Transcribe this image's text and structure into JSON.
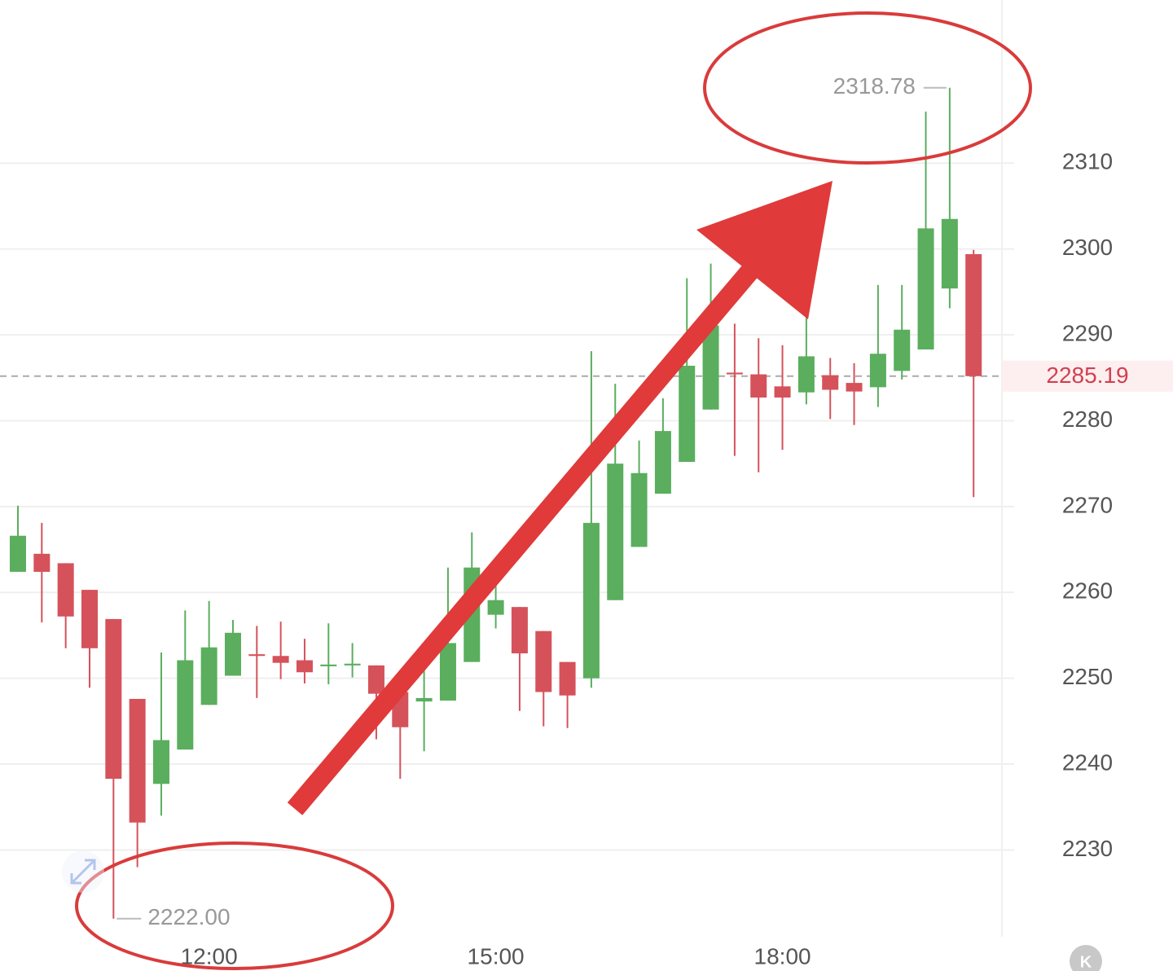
{
  "chart_data": {
    "type": "candlestick",
    "categories": [
      null,
      null,
      null,
      null,
      null,
      null,
      null,
      null,
      "12:00",
      null,
      null,
      null,
      null,
      null,
      null,
      null,
      null,
      null,
      null,
      null,
      "15:00",
      null,
      null,
      null,
      null,
      null,
      null,
      null,
      null,
      null,
      null,
      null,
      "18:00",
      null,
      null,
      null,
      null,
      null,
      null,
      null,
      null
    ],
    "open": [
      2262.4,
      2264.5,
      2263.4,
      2260.3,
      2256.9,
      2247.6,
      2237.7,
      2241.7,
      2246.9,
      2250.3,
      2252.8,
      2252.6,
      2252.1,
      2251.4,
      2251.5,
      2251.5,
      2248.4,
      2247.3,
      2247.4,
      2251.9,
      2257.4,
      2258.3,
      2255.5,
      2251.9,
      2250.0,
      2259.1,
      2265.3,
      2271.5,
      2275.2,
      2281.3,
      2285.6,
      2285.4,
      2284.0,
      2283.3,
      2285.3,
      2284.4,
      2283.9,
      2285.8,
      2288.3,
      2295.4,
      2299.4
    ],
    "high": [
      2270.1,
      2268.1,
      2263.4,
      2260.3,
      2256.9,
      2247.6,
      2253.0,
      2257.9,
      2259.0,
      2256.8,
      2256.1,
      2256.6,
      2254.6,
      2256.4,
      2254.1,
      2251.5,
      2248.4,
      2251.3,
      2262.9,
      2267.0,
      2262.7,
      2258.3,
      2255.5,
      2251.9,
      2288.1,
      2284.3,
      2277.7,
      2282.6,
      2296.6,
      2298.3,
      2291.3,
      2289.6,
      2288.8,
      2293.4,
      2287.3,
      2286.7,
      2295.8,
      2295.8,
      2316.0,
      2318.78,
      2299.9
    ],
    "low": [
      2262.4,
      2256.5,
      2253.5,
      2248.9,
      2222,
      2228.0,
      2234.0,
      2241.7,
      2246.9,
      2250.3,
      2247.7,
      2249.9,
      2249.4,
      2249.3,
      2250.1,
      2242.9,
      2238.3,
      2241.5,
      2247.4,
      2251.9,
      2255.8,
      2246.2,
      2244.4,
      2244.2,
      2248.9,
      2259.1,
      2265.3,
      2271.5,
      2275.2,
      2281.3,
      2275.9,
      2274.0,
      2276.6,
      2281.9,
      2280.2,
      2279.5,
      2281.6,
      2284.8,
      2288.3,
      2293.1,
      2271.1
    ],
    "close": [
      2266.6,
      2262.4,
      2257.2,
      2253.5,
      2238.3,
      2233.2,
      2242.8,
      2252.1,
      2253.6,
      2255.3,
      2252.6,
      2251.8,
      2250.7,
      2251.6,
      2251.7,
      2248.2,
      2244.3,
      2247.7,
      2254.1,
      2262.9,
      2259.1,
      2252.9,
      2248.4,
      2248.0,
      2268.1,
      2275.0,
      2273.9,
      2278.8,
      2286.4,
      2291.1,
      2285.4,
      2282.7,
      2282.7,
      2287.5,
      2283.6,
      2283.4,
      2287.8,
      2290.6,
      2302.4,
      2303.5,
      2285.19
    ],
    "up_color": "#5aae5e",
    "down_color": "#d5525b",
    "ylim": [
      2220,
      2329
    ],
    "yticks": [
      2230,
      2240,
      2250,
      2260,
      2270,
      2280,
      2290,
      2300,
      2310
    ],
    "grid": true,
    "high_marker": {
      "index": 39,
      "value": 2318.78
    },
    "low_marker": {
      "index": 4,
      "value": 2222,
      "label": "2222.00"
    },
    "last_price": 2285.19,
    "logo": "K"
  }
}
